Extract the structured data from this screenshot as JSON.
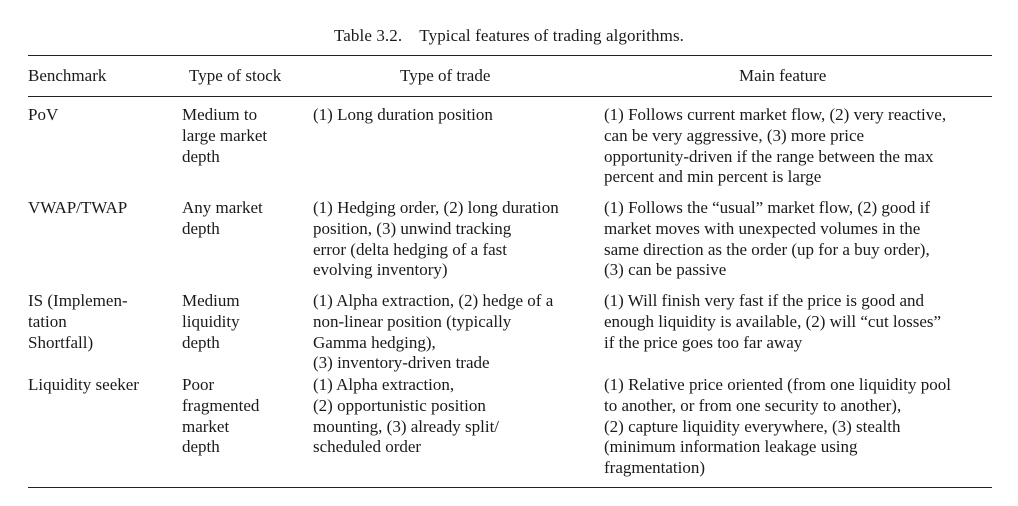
{
  "caption": "Table 3.2.    Typical features of trading algorithms.",
  "headers": {
    "benchmark": "Benchmark",
    "type_of_stock": "Type of stock",
    "type_of_trade": "Type of trade",
    "main_feature": "Main feature"
  },
  "rows": [
    {
      "benchmark": [
        "PoV"
      ],
      "type_of_stock": [
        "Medium to",
        "large market",
        "depth"
      ],
      "type_of_trade": [
        "(1) Long duration position"
      ],
      "main_feature": [
        "(1) Follows current market flow, (2) very reactive,",
        "can be very aggressive, (3) more price",
        "opportunity-driven if the range between the max",
        "percent and min percent is large"
      ]
    },
    {
      "benchmark": [
        "VWAP/TWAP"
      ],
      "type_of_stock": [
        "Any market",
        "depth"
      ],
      "type_of_trade": [
        "(1) Hedging order, (2) long duration",
        "position, (3) unwind tracking",
        "error (delta hedging of a fast",
        "evolving inventory)"
      ],
      "main_feature": [
        "(1) Follows the “usual” market flow, (2) good if",
        "market moves with unexpected volumes in the",
        "same direction as the order (up for a buy order),",
        "(3) can be passive"
      ]
    },
    {
      "benchmark": [
        "IS (Implemen-",
        "tation",
        "Shortfall)"
      ],
      "type_of_stock": [
        "Medium",
        "liquidity",
        "depth"
      ],
      "type_of_trade": [
        "(1) Alpha extraction, (2) hedge of a",
        "non-linear position (typically",
        "Gamma hedging),",
        "(3) inventory-driven trade"
      ],
      "main_feature": [
        "(1) Will finish very fast if the price is good and",
        "enough liquidity is available, (2) will “cut losses”",
        "if the price goes too far away"
      ]
    },
    {
      "benchmark": [
        "Liquidity seeker"
      ],
      "type_of_stock": [
        "Poor",
        "fragmented",
        "market",
        "depth"
      ],
      "type_of_trade": [
        "(1) Alpha extraction,",
        "(2) opportunistic position",
        "mounting, (3) already split/",
        "scheduled order"
      ],
      "main_feature": [
        "(1) Relative price oriented (from one liquidity pool",
        "to another, or from one security to another),",
        "(2) capture liquidity everywhere, (3) stealth",
        "(minimum information leakage using",
        "fragmentation)"
      ]
    }
  ]
}
